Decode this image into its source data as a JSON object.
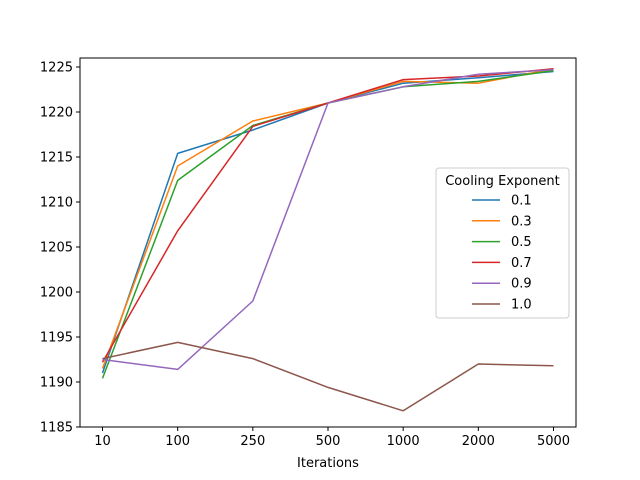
{
  "chart_data": {
    "type": "line",
    "title": "",
    "xlabel": "Iterations",
    "ylabel": "",
    "categories": [
      "10",
      "100",
      "250",
      "500",
      "1000",
      "2000",
      "5000"
    ],
    "ylim": [
      1185,
      1226
    ],
    "yticks": [
      1185,
      1190,
      1195,
      1200,
      1205,
      1210,
      1215,
      1220,
      1225
    ],
    "grid": false,
    "legend": {
      "title": "Cooling Exponent",
      "placement": "right"
    },
    "series": [
      {
        "name": "0.1",
        "color": "#1f77b4",
        "values": [
          1191.0,
          1215.4,
          1218.0,
          1221.0,
          1223.2,
          1223.8,
          1224.5
        ]
      },
      {
        "name": "0.3",
        "color": "#ff7f0e",
        "values": [
          1191.5,
          1214.0,
          1219.0,
          1221.0,
          1223.4,
          1223.2,
          1224.8
        ]
      },
      {
        "name": "0.5",
        "color": "#2ca02c",
        "values": [
          1190.4,
          1212.4,
          1218.5,
          1221.0,
          1222.8,
          1223.4,
          1224.6
        ]
      },
      {
        "name": "0.7",
        "color": "#d62728",
        "values": [
          1192.2,
          1206.8,
          1218.4,
          1221.0,
          1223.6,
          1224.0,
          1224.8
        ]
      },
      {
        "name": "0.9",
        "color": "#9467bd",
        "values": [
          1192.5,
          1191.4,
          1199.0,
          1221.0,
          1222.8,
          1224.2,
          1224.7
        ]
      },
      {
        "name": "1.0",
        "color": "#8c564b",
        "values": [
          1192.6,
          1194.4,
          1192.6,
          1189.4,
          1186.8,
          1192.0,
          1191.8
        ]
      }
    ]
  }
}
